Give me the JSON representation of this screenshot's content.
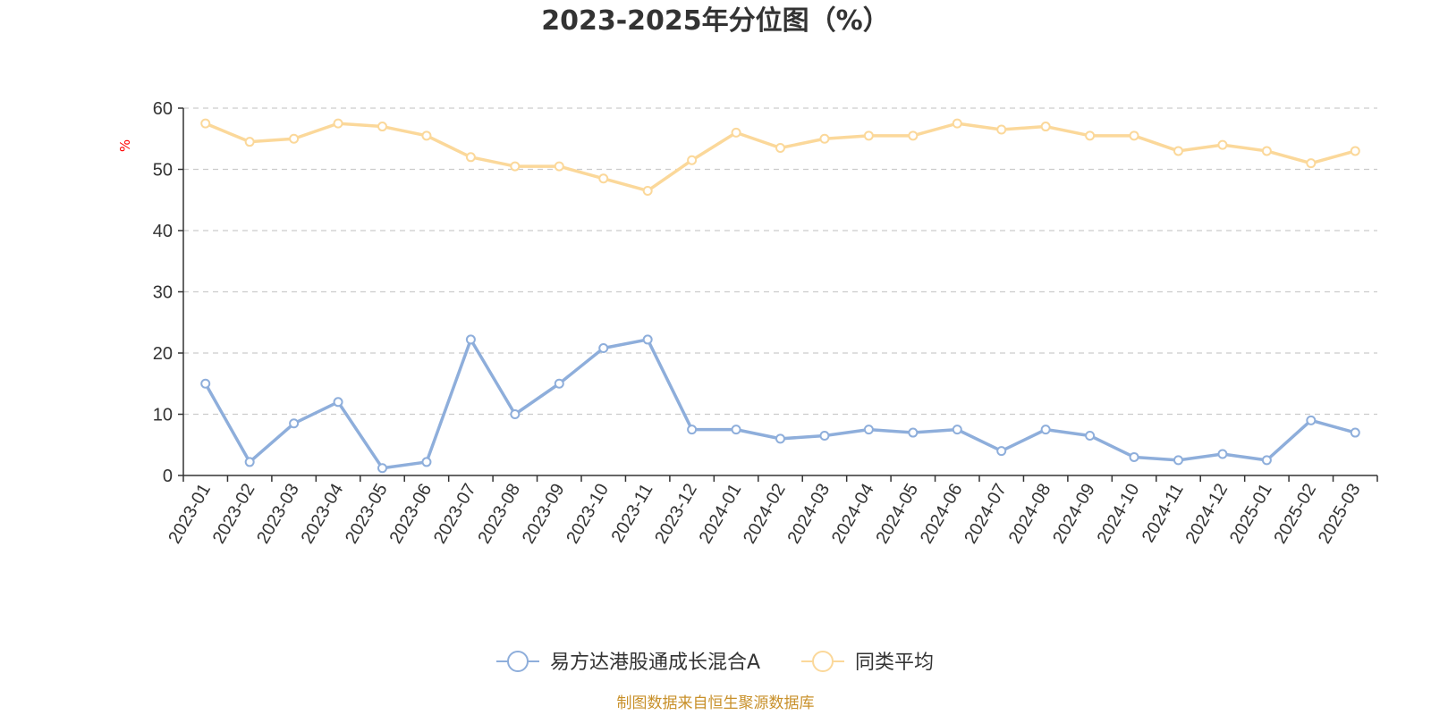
{
  "chart_data": {
    "type": "line",
    "title": "2023-2025年分位图（%）",
    "xlabel": "",
    "ylabel": "%",
    "ylim": [
      0,
      60
    ],
    "yticks": [
      0,
      10,
      20,
      30,
      40,
      50,
      60
    ],
    "grid": "horizontal-dashed",
    "legend": "bottom-center",
    "categories": [
      "2023-01",
      "2023-02",
      "2023-03",
      "2023-04",
      "2023-05",
      "2023-06",
      "2023-07",
      "2023-08",
      "2023-09",
      "2023-10",
      "2023-11",
      "2023-12",
      "2024-01",
      "2024-02",
      "2024-03",
      "2024-04",
      "2024-05",
      "2024-06",
      "2024-07",
      "2024-08",
      "2024-09",
      "2024-10",
      "2024-11",
      "2024-12",
      "2025-01",
      "2025-02",
      "2025-03"
    ],
    "series": [
      {
        "name": "易方达港股通成长混合A",
        "color": "#8eaedb",
        "values": [
          15,
          2.2,
          8.5,
          12,
          1.2,
          2.2,
          22.2,
          10,
          15,
          20.8,
          22.2,
          7.5,
          7.5,
          6,
          6.5,
          7.5,
          7,
          7.5,
          4,
          7.5,
          6.5,
          3,
          2.5,
          3.5,
          2.5,
          9,
          7
        ]
      },
      {
        "name": "同类平均",
        "color": "#fbd89a",
        "values": [
          57.5,
          54.5,
          55,
          57.5,
          57,
          55.5,
          52,
          50.5,
          50.5,
          48.5,
          46.5,
          51.5,
          56,
          53.5,
          55,
          55.5,
          55.5,
          57.5,
          56.5,
          57,
          55.5,
          55.5,
          53,
          54,
          53,
          51,
          53
        ]
      }
    ],
    "source": "制图数据来自恒生聚源数据库"
  }
}
